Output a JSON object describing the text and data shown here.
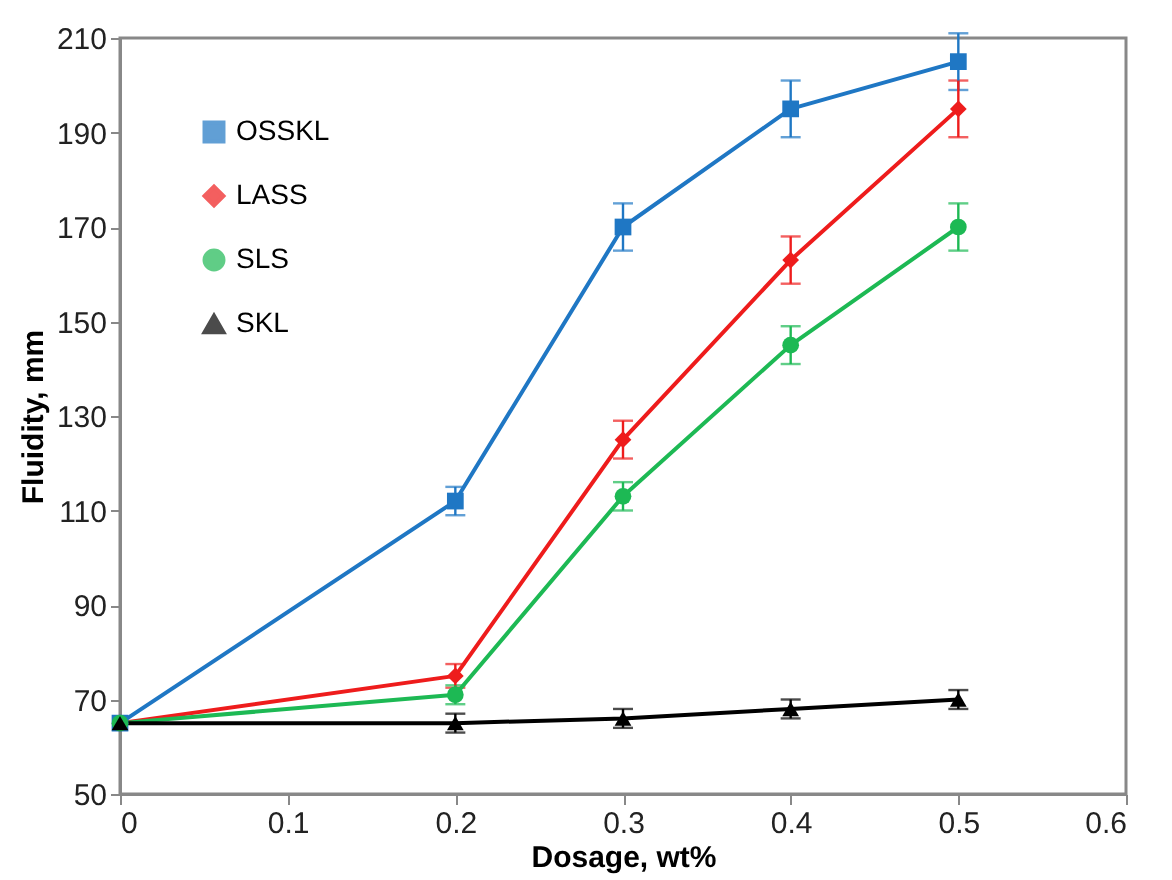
{
  "chart_data": {
    "type": "line",
    "xlabel": "Dosage, wt%",
    "ylabel": "Fluidity, mm",
    "x": [
      0,
      0.2,
      0.3,
      0.4,
      0.5
    ],
    "series": [
      {
        "name": "OSSKL",
        "color": "#1f77c4",
        "marker": "square",
        "values": [
          65,
          112,
          170,
          195,
          205
        ],
        "errors": [
          null,
          3,
          5,
          6,
          6
        ]
      },
      {
        "name": "LASS",
        "color": "#ee1c1c",
        "marker": "diamond",
        "values": [
          65,
          75,
          125,
          163,
          195
        ],
        "errors": [
          null,
          2.5,
          4,
          5,
          6
        ]
      },
      {
        "name": "SLS",
        "color": "#1db954",
        "marker": "circle",
        "values": [
          65,
          71,
          113,
          145,
          170
        ],
        "errors": [
          null,
          2,
          3,
          4,
          5
        ]
      },
      {
        "name": "SKL",
        "color": "#000000",
        "marker": "triangle",
        "values": [
          65,
          65,
          66,
          68,
          70
        ],
        "errors": [
          null,
          2,
          2,
          2,
          2
        ]
      }
    ],
    "xlim": [
      0,
      0.6
    ],
    "xticks": [
      0,
      0.1,
      0.2,
      0.3,
      0.4,
      0.5,
      0.6
    ],
    "ylim": [
      50,
      210
    ],
    "yticks": [
      50,
      70,
      90,
      110,
      130,
      150,
      170,
      190,
      210
    ],
    "grid": false,
    "legend": "top left"
  }
}
